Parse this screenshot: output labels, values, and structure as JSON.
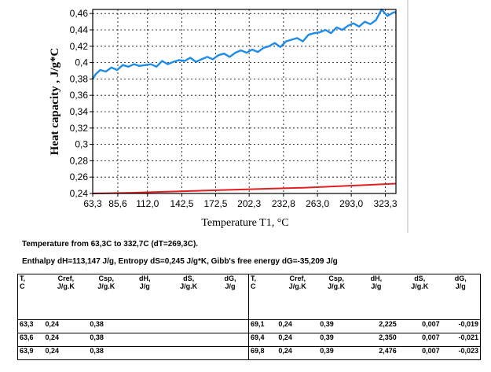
{
  "chart_data": {
    "type": "line",
    "xlabel": "Temperature T1, °C",
    "ylabel": "Heat capacity , J/g*C",
    "xlim": [
      63.3,
      332.7
    ],
    "ylim": [
      0.24,
      0.465
    ],
    "x_ticks": [
      63.3,
      85.6,
      112.0,
      142.5,
      172.5,
      202.3,
      232.8,
      263.0,
      293.0,
      323.3
    ],
    "x_tick_labels": [
      "63,3",
      "85,6",
      "112,0",
      "142,5",
      "172,5",
      "202,3",
      "232,8",
      "263,0",
      "293,0",
      "323,3"
    ],
    "y_ticks": [
      0.24,
      0.26,
      0.28,
      0.3,
      0.32,
      0.34,
      0.36,
      0.38,
      0.4,
      0.42,
      0.44,
      0.46
    ],
    "y_tick_labels": [
      "0,24",
      "0,26",
      "0,28",
      "0,3",
      "0,32",
      "0,34",
      "0,36",
      "0,38",
      "0,4",
      "0,42",
      "0,44",
      "0,46"
    ],
    "grid": true,
    "series": [
      {
        "color": "#1f8ce8",
        "x": [
          63.3,
          66,
          70,
          75,
          80,
          85,
          90,
          95,
          100,
          105,
          110,
          115,
          120,
          125,
          130,
          135,
          140,
          145,
          150,
          155,
          160,
          165,
          170,
          175,
          180,
          185,
          190,
          195,
          200,
          205,
          210,
          215,
          220,
          225,
          230,
          235,
          240,
          245,
          250,
          255,
          260,
          265,
          270,
          275,
          280,
          285,
          290,
          295,
          300,
          305,
          310,
          315,
          320,
          325,
          330,
          332.7
        ],
        "y": [
          0.38,
          0.386,
          0.391,
          0.389,
          0.394,
          0.391,
          0.397,
          0.395,
          0.398,
          0.396,
          0.397,
          0.398,
          0.395,
          0.402,
          0.398,
          0.401,
          0.403,
          0.402,
          0.406,
          0.401,
          0.404,
          0.407,
          0.404,
          0.409,
          0.411,
          0.407,
          0.412,
          0.415,
          0.412,
          0.416,
          0.413,
          0.418,
          0.42,
          0.424,
          0.419,
          0.426,
          0.428,
          0.43,
          0.426,
          0.434,
          0.436,
          0.437,
          0.44,
          0.436,
          0.443,
          0.44,
          0.445,
          0.448,
          0.444,
          0.45,
          0.447,
          0.452,
          0.465,
          0.457,
          0.461,
          0.462
        ]
      },
      {
        "color": "#e02020",
        "x": [
          63.3,
          100,
          150,
          200,
          250,
          300,
          332.7
        ],
        "y": [
          0.24,
          0.241,
          0.243,
          0.245,
          0.247,
          0.25,
          0.252
        ]
      }
    ]
  },
  "summary": {
    "temperature_line": "Temperature from 63,3C  to 332,7C (dT=269,3C).",
    "thermo_line": "Enthalpy dH=113,147 J/g, Entropy dS=0,245 J/g*K, Gibb's free energy dG=-35,209 J/g"
  },
  "table": {
    "left": {
      "headers": [
        [
          "T,",
          "C"
        ],
        [
          "Cref,",
          "J/g.K"
        ],
        [
          "Csp,",
          "J/g.K"
        ],
        [
          "dH,",
          "J/g"
        ],
        [
          "dS,",
          "J/g.K"
        ],
        [
          "dG,",
          "J/g"
        ]
      ],
      "rows": [
        [
          "63,3",
          "0,24",
          "0,38",
          "",
          "",
          ""
        ],
        [
          "63,6",
          "0,24",
          "0,38",
          "",
          "",
          ""
        ],
        [
          "63,9",
          "0,24",
          "0,38",
          "",
          "",
          ""
        ]
      ]
    },
    "right": {
      "headers": [
        [
          "T,",
          "C"
        ],
        [
          "Cref,",
          "J/g.K"
        ],
        [
          "Csp,",
          "J/g.K"
        ],
        [
          "dH,",
          "J/g"
        ],
        [
          "dS,",
          "J/g.K"
        ],
        [
          "dG,",
          "J/g"
        ]
      ],
      "rows": [
        [
          "69,1",
          "0,24",
          "0,39",
          "2,225",
          "0,007",
          "-0,019"
        ],
        [
          "69,4",
          "0,24",
          "0,39",
          "2,350",
          "0,007",
          "-0,021"
        ],
        [
          "69,8",
          "0,24",
          "0,39",
          "2,476",
          "0,007",
          "-0,023"
        ]
      ]
    }
  }
}
